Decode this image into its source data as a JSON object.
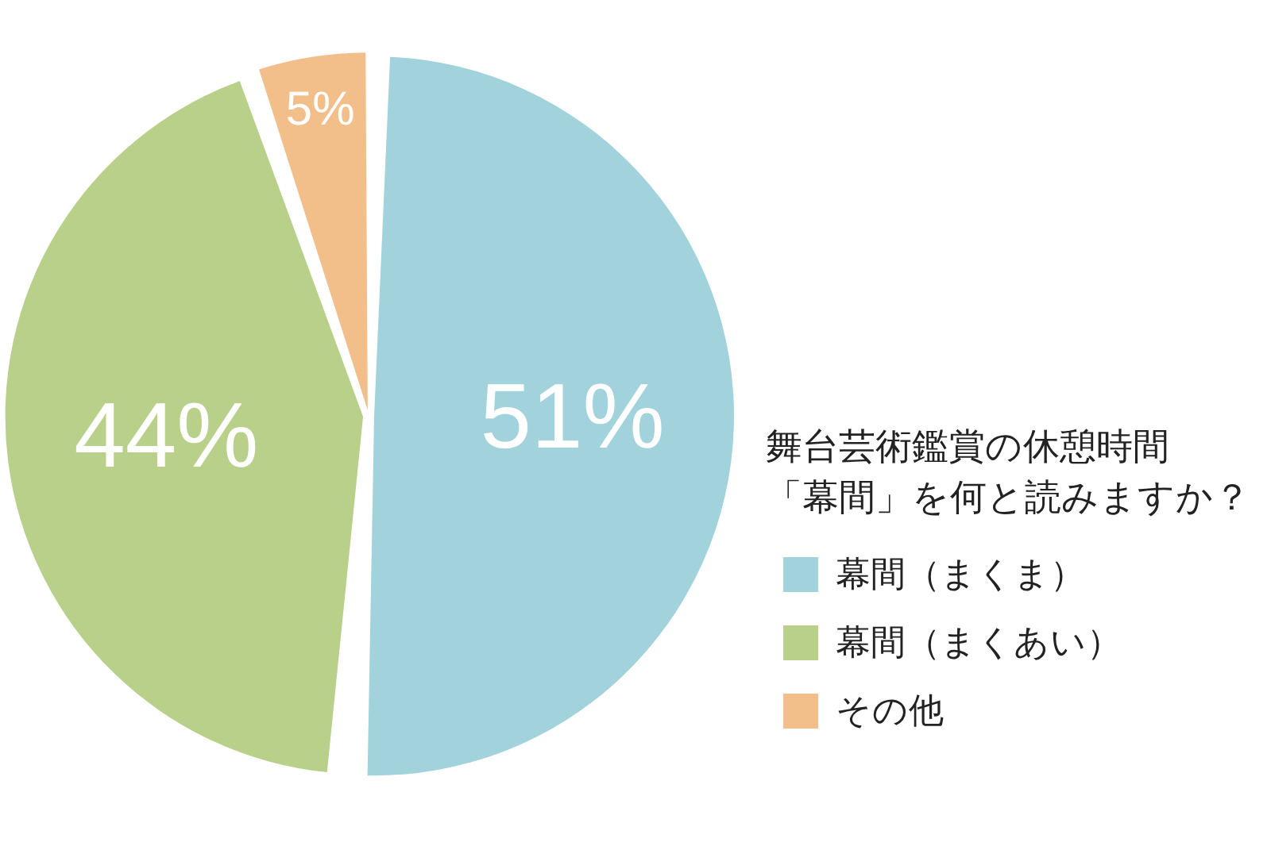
{
  "chart_data": {
    "type": "pie",
    "title": "舞台芸術鑑賞の休憩時間「幕間」を何と読みますか？",
    "categories": [
      "幕間（まくま）",
      "幕間（まくあい）",
      "その他"
    ],
    "values": [
      51,
      44,
      5
    ],
    "colors": [
      "#a2d2dc",
      "#b9d08b",
      "#f2bf8b"
    ],
    "value_labels": [
      "51%",
      "44%",
      "5%"
    ],
    "legend": "right"
  }
}
